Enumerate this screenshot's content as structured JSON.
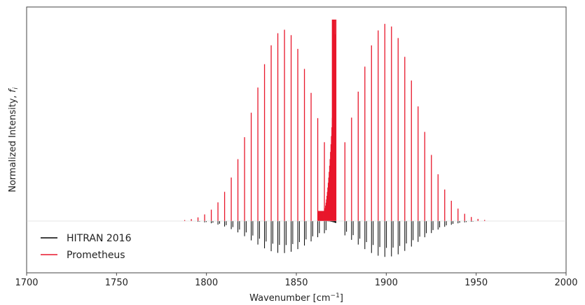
{
  "chart_data": {
    "type": "spectrum",
    "xlabel": "Wavenumber [cm",
    "xlabel_sup": "−1",
    "xlabel_end": "]",
    "ylabel": "Normalized Intensity, ",
    "ylabel_italic": "f",
    "ylabel_sub": "i",
    "xlim": [
      1700,
      2000
    ],
    "x_ticks": [
      1700,
      1750,
      1800,
      1850,
      1900,
      1950,
      2000
    ],
    "ylim_relative": [
      -0.3,
      1.05
    ],
    "y_ticks_shown": false,
    "grid": false,
    "legend_placement": "bottom-left",
    "series": [
      {
        "name": "HITRAN 2016",
        "color": "#000000",
        "direction": "down",
        "p_branch": {
          "start": 1725,
          "end": 1868,
          "spacing": 3.7,
          "peak_x": 1842,
          "peak_value": 0.17,
          "width": 24
        },
        "q_branch": {
          "start": 1864,
          "end": 1872,
          "peak_value": 0.01
        },
        "r_branch": {
          "start": 1877,
          "end": 1990,
          "spacing": 3.7,
          "peak_x": 1900,
          "peak_value": 0.19,
          "width": 24
        }
      },
      {
        "name": "Prometheus",
        "color": "#e8172b",
        "direction": "up",
        "p_branch": {
          "start": 1725,
          "end": 1868,
          "spacing": 3.7,
          "peak_x": 1843,
          "peak_value": 0.95,
          "width": 24
        },
        "q_branch": {
          "start": 1862,
          "end": 1872,
          "peak_value": 1.0
        },
        "r_branch": {
          "start": 1877,
          "end": 1990,
          "spacing": 3.7,
          "peak_x": 1900,
          "peak_value": 0.98,
          "width": 24
        }
      }
    ]
  },
  "legend": {
    "items": [
      {
        "label": "HITRAN 2016",
        "color": "#000000"
      },
      {
        "label": "Prometheus",
        "color": "#e8172b"
      }
    ]
  }
}
